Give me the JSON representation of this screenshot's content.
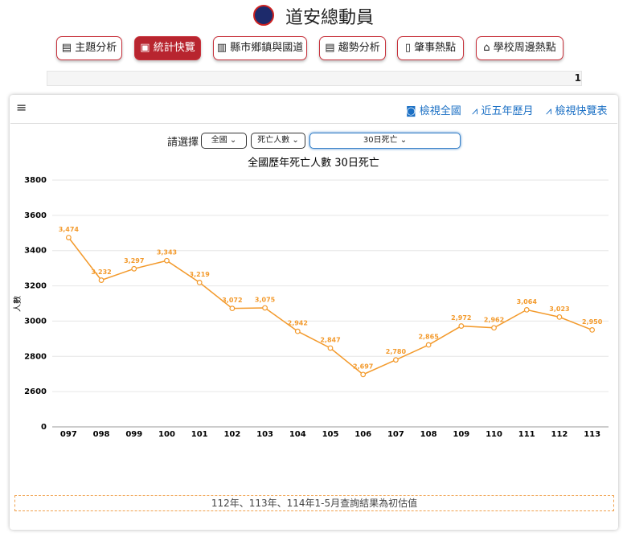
{
  "header": {
    "title": "道安總動員"
  },
  "nav": [
    "主題分析",
    "統計快覽",
    "縣市鄉鎮與國道",
    "趨勢分析",
    "肇事熱點",
    "學校周邊熱點"
  ],
  "info_bar": "1",
  "toolbar": {
    "links": [
      "檢視全國",
      "近五年歷月",
      "檢視快覽表"
    ]
  },
  "filters": {
    "label": "請選擇",
    "selects": [
      "全國",
      "死亡人數",
      "30日死亡"
    ]
  },
  "chart_data": {
    "type": "line",
    "title": "全國歷年死亡人數 30日死亡",
    "y_label": "人數",
    "categories": [
      "097",
      "098",
      "099",
      "100",
      "101",
      "102",
      "103",
      "104",
      "105",
      "106",
      "107",
      "108",
      "109",
      "110",
      "111",
      "112",
      "113"
    ],
    "values": [
      3474,
      3232,
      3297,
      3343,
      3219,
      3072,
      3075,
      2942,
      2847,
      2697,
      2780,
      2865,
      2972,
      2962,
      3064,
      3023,
      2950
    ],
    "value_labels": [
      "3,474",
      "3,232",
      "3,297",
      "3,343",
      "3,219",
      "3,072",
      "3,075",
      "2,942",
      "2,847",
      "2,697",
      "2,780",
      "2,865",
      "2,972",
      "2,962",
      "3,064",
      "3,023",
      "2,950"
    ],
    "color": "#f39a2c",
    "ylim": [
      2400,
      3800
    ],
    "yticks": [
      {
        "value": 2400,
        "label": "0"
      },
      2600,
      2800,
      3000,
      3200,
      3400,
      3600,
      3800
    ],
    "grid": true
  },
  "footnote": "112年、113年、114年1-5月查詢結果為初估值"
}
